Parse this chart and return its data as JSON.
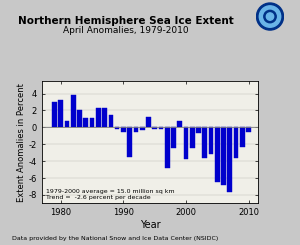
{
  "title": "Northern Hemisphere Sea Ice Extent",
  "subtitle": "April Anomalies, 1979-2010",
  "xlabel": "Year",
  "ylabel": "Extent Anomalies in Percent",
  "footnote": "Data provided by the National Snow and Ice Data Center (NSIDC)",
  "legend_line1": "1979-2000 average = 15.0 million sq km",
  "legend_line2": "Trend =  -2.6 percent per decade",
  "bar_color": "#0000cc",
  "fig_facecolor": "#c8c8c8",
  "plot_facecolor": "#f0efe8",
  "years": [
    1979,
    1980,
    1981,
    1982,
    1983,
    1984,
    1985,
    1986,
    1987,
    1988,
    1989,
    1990,
    1991,
    1992,
    1993,
    1994,
    1995,
    1996,
    1997,
    1998,
    1999,
    2000,
    2001,
    2002,
    2003,
    2004,
    2005,
    2006,
    2007,
    2008,
    2009,
    2010
  ],
  "values": [
    3.0,
    3.2,
    0.7,
    3.8,
    2.0,
    1.1,
    1.1,
    2.3,
    2.3,
    1.5,
    -0.2,
    -0.5,
    -3.5,
    -0.5,
    -0.3,
    1.2,
    -0.2,
    -0.2,
    -4.8,
    -2.5,
    0.7,
    -3.8,
    -2.5,
    -0.7,
    -3.6,
    -3.1,
    -6.5,
    -6.8,
    -7.7,
    -3.6,
    -2.3,
    -0.5
  ],
  "ylim": [
    -9,
    5.5
  ],
  "yticks": [
    -8,
    -6,
    -4,
    -2,
    0,
    2,
    4
  ],
  "xticks": [
    1980,
    1990,
    2000,
    2010
  ]
}
